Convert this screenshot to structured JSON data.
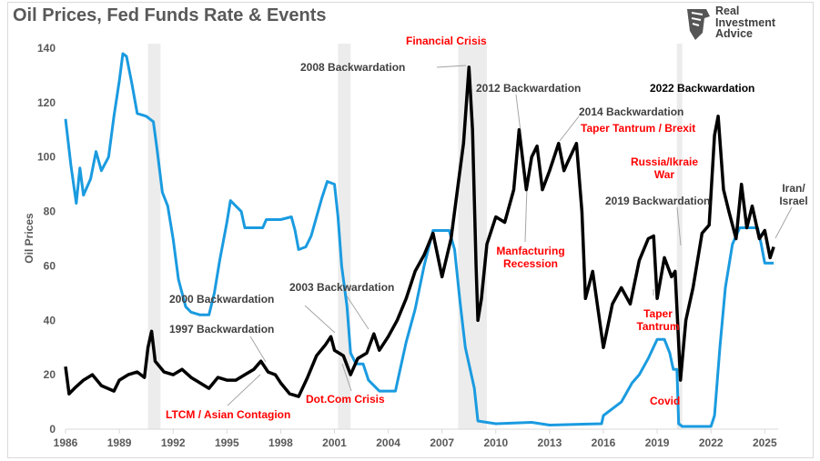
{
  "title": "Oil Prices, Fed Funds Rate & Events",
  "logo": {
    "line1": "Real",
    "line2": "Investment",
    "line3": "Advice"
  },
  "chart_data": {
    "type": "line",
    "title": "Oil Prices, Fed Funds Rate & Events",
    "ylabel": "Oil Prices",
    "xlabel": "",
    "xlim": [
      1986,
      2025.8
    ],
    "ylim": [
      0,
      140
    ],
    "yticks": [
      0,
      20,
      40,
      60,
      80,
      100,
      120,
      140
    ],
    "xticks": [
      1986,
      1989,
      1992,
      1995,
      1998,
      2001,
      2004,
      2007,
      2010,
      2013,
      2016,
      2019,
      2022,
      2025
    ],
    "grid": false,
    "recessions": [
      [
        1990.6,
        1991.3
      ],
      [
        2001.2,
        2001.9
      ],
      [
        2007.9,
        2009.5
      ],
      [
        2020.1,
        2020.4
      ]
    ],
    "series": [
      {
        "color": "#1a9be0",
        "points": [
          [
            1986.0,
            114
          ],
          [
            1986.3,
            97
          ],
          [
            1986.6,
            83
          ],
          [
            1986.8,
            96
          ],
          [
            1987.0,
            86
          ],
          [
            1987.4,
            92
          ],
          [
            1987.7,
            102
          ],
          [
            1988.0,
            95
          ],
          [
            1988.4,
            100
          ],
          [
            1988.7,
            115
          ],
          [
            1989.0,
            128
          ],
          [
            1989.2,
            138
          ],
          [
            1989.4,
            137
          ],
          [
            1989.7,
            127
          ],
          [
            1990.0,
            116
          ],
          [
            1990.5,
            115
          ],
          [
            1990.9,
            113
          ],
          [
            1991.1,
            103
          ],
          [
            1991.4,
            87
          ],
          [
            1991.7,
            82
          ],
          [
            1992.0,
            70
          ],
          [
            1992.3,
            55
          ],
          [
            1992.7,
            45
          ],
          [
            1993.0,
            43
          ],
          [
            1993.5,
            42
          ],
          [
            1994.0,
            42
          ],
          [
            1994.3,
            50
          ],
          [
            1994.6,
            62
          ],
          [
            1995.0,
            76
          ],
          [
            1995.2,
            84
          ],
          [
            1995.5,
            82
          ],
          [
            1995.8,
            80
          ],
          [
            1996.0,
            74
          ],
          [
            1996.5,
            74
          ],
          [
            1997.0,
            74
          ],
          [
            1997.2,
            77
          ],
          [
            1997.6,
            77
          ],
          [
            1998.0,
            77
          ],
          [
            1998.6,
            78
          ],
          [
            1998.8,
            73
          ],
          [
            1999.0,
            66
          ],
          [
            1999.4,
            67
          ],
          [
            1999.7,
            71
          ],
          [
            2000.0,
            78
          ],
          [
            2000.3,
            85
          ],
          [
            2000.6,
            91
          ],
          [
            2001.0,
            90
          ],
          [
            2001.2,
            78
          ],
          [
            2001.4,
            60
          ],
          [
            2001.7,
            45
          ],
          [
            2001.9,
            28
          ],
          [
            2002.2,
            24
          ],
          [
            2002.6,
            24
          ],
          [
            2002.9,
            18
          ],
          [
            2003.5,
            14
          ],
          [
            2004.4,
            14
          ],
          [
            2004.6,
            20
          ],
          [
            2005.0,
            32
          ],
          [
            2005.5,
            44
          ],
          [
            2006.0,
            60
          ],
          [
            2006.5,
            73
          ],
          [
            2007.4,
            73
          ],
          [
            2007.7,
            66
          ],
          [
            2008.0,
            47
          ],
          [
            2008.3,
            30
          ],
          [
            2008.8,
            15
          ],
          [
            2009.0,
            3
          ],
          [
            2010.0,
            2
          ],
          [
            2012.0,
            2.5
          ],
          [
            2013.0,
            1.5
          ],
          [
            2015.9,
            2
          ],
          [
            2016.0,
            5
          ],
          [
            2017.0,
            10
          ],
          [
            2017.6,
            17
          ],
          [
            2018.0,
            20
          ],
          [
            2018.5,
            26
          ],
          [
            2019.0,
            33
          ],
          [
            2019.4,
            33
          ],
          [
            2019.7,
            28
          ],
          [
            2019.9,
            22
          ],
          [
            2020.1,
            22
          ],
          [
            2020.2,
            2
          ],
          [
            2020.4,
            1
          ],
          [
            2022.0,
            1
          ],
          [
            2022.2,
            5
          ],
          [
            2022.5,
            30
          ],
          [
            2022.8,
            52
          ],
          [
            2023.2,
            68
          ],
          [
            2023.6,
            74
          ],
          [
            2024.6,
            74
          ],
          [
            2024.8,
            68
          ],
          [
            2025.0,
            61
          ],
          [
            2025.5,
            61
          ]
        ]
      },
      {
        "color": "#000000",
        "points": [
          [
            1986.0,
            23
          ],
          [
            1986.2,
            13
          ],
          [
            1986.5,
            15
          ],
          [
            1987.0,
            18
          ],
          [
            1987.5,
            20
          ],
          [
            1988.0,
            16
          ],
          [
            1988.7,
            14
          ],
          [
            1989.0,
            18
          ],
          [
            1989.5,
            20
          ],
          [
            1990.0,
            21
          ],
          [
            1990.4,
            19
          ],
          [
            1990.6,
            30
          ],
          [
            1990.8,
            36
          ],
          [
            1991.0,
            25
          ],
          [
            1991.5,
            21
          ],
          [
            1992.0,
            20
          ],
          [
            1992.5,
            22
          ],
          [
            1993.0,
            19
          ],
          [
            1993.5,
            17
          ],
          [
            1994.0,
            15
          ],
          [
            1994.5,
            19
          ],
          [
            1995.0,
            18
          ],
          [
            1995.5,
            18
          ],
          [
            1996.0,
            20
          ],
          [
            1996.5,
            22
          ],
          [
            1996.9,
            25
          ],
          [
            1997.3,
            21
          ],
          [
            1997.7,
            20
          ],
          [
            1998.0,
            17
          ],
          [
            1998.5,
            13
          ],
          [
            1999.0,
            12
          ],
          [
            1999.5,
            19
          ],
          [
            2000.0,
            27
          ],
          [
            2000.5,
            31
          ],
          [
            2000.8,
            34
          ],
          [
            2001.0,
            29
          ],
          [
            2001.5,
            27
          ],
          [
            2001.9,
            20
          ],
          [
            2002.3,
            26
          ],
          [
            2002.8,
            28
          ],
          [
            2003.2,
            35
          ],
          [
            2003.5,
            29
          ],
          [
            2004.0,
            34
          ],
          [
            2004.5,
            40
          ],
          [
            2005.0,
            48
          ],
          [
            2005.5,
            58
          ],
          [
            2006.0,
            64
          ],
          [
            2006.5,
            72
          ],
          [
            2007.0,
            56
          ],
          [
            2007.5,
            70
          ],
          [
            2007.9,
            90
          ],
          [
            2008.2,
            105
          ],
          [
            2008.5,
            133
          ],
          [
            2008.7,
            110
          ],
          [
            2008.9,
            60
          ],
          [
            2009.0,
            40
          ],
          [
            2009.2,
            48
          ],
          [
            2009.5,
            68
          ],
          [
            2010.0,
            78
          ],
          [
            2010.5,
            76
          ],
          [
            2011.0,
            88
          ],
          [
            2011.3,
            110
          ],
          [
            2011.7,
            88
          ],
          [
            2012.0,
            100
          ],
          [
            2012.3,
            104
          ],
          [
            2012.6,
            88
          ],
          [
            2013.0,
            95
          ],
          [
            2013.5,
            105
          ],
          [
            2013.8,
            95
          ],
          [
            2014.0,
            98
          ],
          [
            2014.5,
            105
          ],
          [
            2014.8,
            80
          ],
          [
            2015.0,
            48
          ],
          [
            2015.4,
            58
          ],
          [
            2015.7,
            44
          ],
          [
            2016.0,
            30
          ],
          [
            2016.5,
            46
          ],
          [
            2017.0,
            52
          ],
          [
            2017.5,
            46
          ],
          [
            2018.0,
            62
          ],
          [
            2018.5,
            70
          ],
          [
            2018.8,
            71
          ],
          [
            2019.0,
            48
          ],
          [
            2019.4,
            63
          ],
          [
            2019.8,
            56
          ],
          [
            2020.0,
            58
          ],
          [
            2020.3,
            18
          ],
          [
            2020.6,
            40
          ],
          [
            2021.0,
            52
          ],
          [
            2021.5,
            72
          ],
          [
            2021.9,
            75
          ],
          [
            2022.2,
            108
          ],
          [
            2022.4,
            115
          ],
          [
            2022.7,
            88
          ],
          [
            2023.0,
            80
          ],
          [
            2023.4,
            70
          ],
          [
            2023.7,
            90
          ],
          [
            2024.0,
            74
          ],
          [
            2024.3,
            82
          ],
          [
            2024.7,
            70
          ],
          [
            2025.0,
            73
          ],
          [
            2025.3,
            63
          ],
          [
            2025.5,
            67
          ]
        ]
      }
    ],
    "annotations": {
      "financial_crisis": "Financial Crisis",
      "bw_2008": "2008 Backwardation",
      "bw_2012": "2012 Backwardation",
      "bw_2014": "2014 Backwardation",
      "taper_brexit": "Taper Tantrum / Brexit",
      "bw_2022": "2022 Backwardation",
      "russia": "Russia/Ikraie War",
      "iran": "Iran/ Israel",
      "bw_2019": "2019 Backwardation",
      "manufacturing": "Manfacturing Recession",
      "bw_2000": "2000 Backwardation",
      "bw_2003": "2003 Backwardation",
      "bw_1997": "1997 Backwardation",
      "taper_tantrum": "Taper Tantrum",
      "dotcom": "Dot.Com Crisis",
      "covid": "Covid",
      "ltcm": "LTCM / Asian Contagion"
    }
  }
}
